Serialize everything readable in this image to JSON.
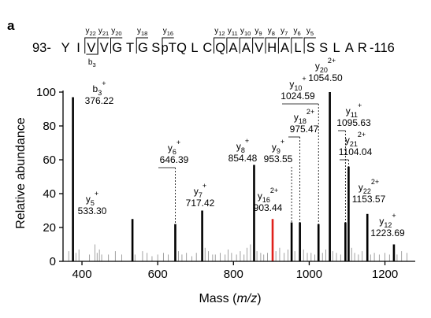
{
  "panel_label": "a",
  "peptide": {
    "prefix": "93-",
    "suffix": "-116",
    "residues": [
      "Y",
      "I",
      "V",
      "V",
      "G",
      "T",
      "G",
      "S",
      "pT",
      "Q",
      "L",
      "C",
      "Q",
      "A",
      "A",
      "V",
      "H",
      "A",
      "L",
      "S",
      "S",
      "L",
      "A",
      "R"
    ],
    "phospho_index": 8,
    "phospho_color": "#e0201b",
    "y_ions": [
      {
        "label": "y",
        "sub": "22",
        "after_index": 1
      },
      {
        "label": "y",
        "sub": "21",
        "after_index": 2
      },
      {
        "label": "y",
        "sub": "20",
        "after_index": 3
      },
      {
        "label": "y",
        "sub": "18",
        "after_index": 5
      },
      {
        "label": "y",
        "sub": "16",
        "after_index": 7
      },
      {
        "label": "y",
        "sub": "12",
        "after_index": 11
      },
      {
        "label": "y",
        "sub": "11",
        "after_index": 12
      },
      {
        "label": "y",
        "sub": "10",
        "after_index": 13
      },
      {
        "label": "y",
        "sub": "9",
        "after_index": 14
      },
      {
        "label": "y",
        "sub": "8",
        "after_index": 15
      },
      {
        "label": "y",
        "sub": "7",
        "after_index": 16
      },
      {
        "label": "y",
        "sub": "6",
        "after_index": 17
      },
      {
        "label": "y",
        "sub": "5",
        "after_index": 18
      }
    ],
    "b_ions": [
      {
        "label": "b",
        "sub": "3",
        "after_index": 2
      }
    ]
  },
  "chart_data": {
    "type": "bar",
    "xlabel": "Mass (m/z)",
    "ylabel": "Relative abundance",
    "xlim": [
      350,
      1280
    ],
    "ylim": [
      0,
      100
    ],
    "xticks": [
      400,
      600,
      800,
      1000,
      1200
    ],
    "yticks": [
      0,
      20,
      40,
      60,
      80,
      100
    ],
    "annotated_peaks": [
      {
        "ion": "b",
        "sub": "3",
        "charge": "+",
        "mz": 376.22,
        "mz_label": "376.22",
        "intensity": 97,
        "color": "#000000"
      },
      {
        "ion": "y",
        "sub": "5",
        "charge": "+",
        "mz": 533.3,
        "mz_label": "533.30",
        "intensity": 25,
        "color": "#000000"
      },
      {
        "ion": "y",
        "sub": "6",
        "charge": "+",
        "mz": 646.39,
        "mz_label": "646.39",
        "intensity": 22,
        "color": "#000000"
      },
      {
        "ion": "y",
        "sub": "7",
        "charge": "+",
        "mz": 717.42,
        "mz_label": "717.42",
        "intensity": 30,
        "color": "#000000"
      },
      {
        "ion": "y",
        "sub": "8",
        "charge": "+",
        "mz": 854.48,
        "mz_label": "854.48",
        "intensity": 57,
        "color": "#000000"
      },
      {
        "ion": "y",
        "sub": "16",
        "charge": "2+",
        "mz": 903.44,
        "mz_label": "903.44",
        "intensity": 25,
        "color": "#e0201b"
      },
      {
        "ion": "y",
        "sub": "9",
        "charge": "+",
        "mz": 953.55,
        "mz_label": "953.55",
        "intensity": 23,
        "color": "#000000"
      },
      {
        "ion": "y",
        "sub": "18",
        "charge": "2+",
        "mz": 975.47,
        "mz_label": "975.47",
        "intensity": 23,
        "color": "#000000"
      },
      {
        "ion": "y",
        "sub": "10",
        "charge": "+",
        "mz": 1024.59,
        "mz_label": "1024.59",
        "intensity": 22,
        "color": "#000000"
      },
      {
        "ion": "y",
        "sub": "20",
        "charge": "2+",
        "mz": 1054.5,
        "mz_label": "1054.50",
        "intensity": 100,
        "color": "#000000"
      },
      {
        "ion": "y",
        "sub": "11",
        "charge": "+",
        "mz": 1095.63,
        "mz_label": "1095.63",
        "intensity": 23,
        "color": "#000000"
      },
      {
        "ion": "y",
        "sub": "21",
        "charge": "2+",
        "mz": 1104.04,
        "mz_label": "1104.04",
        "intensity": 56,
        "color": "#000000"
      },
      {
        "ion": "y",
        "sub": "22",
        "charge": "2+",
        "mz": 1153.57,
        "mz_label": "1153.57",
        "intensity": 28,
        "color": "#000000"
      },
      {
        "ion": "y",
        "sub": "12",
        "charge": "+",
        "mz": 1223.69,
        "mz_label": "1223.69",
        "intensity": 10,
        "color": "#000000"
      }
    ],
    "minor_peaks": [
      {
        "mz": 365,
        "intensity": 6
      },
      {
        "mz": 384,
        "intensity": 5
      },
      {
        "mz": 392,
        "intensity": 7
      },
      {
        "mz": 420,
        "intensity": 4
      },
      {
        "mz": 434,
        "intensity": 10
      },
      {
        "mz": 440,
        "intensity": 5
      },
      {
        "mz": 446,
        "intensity": 7
      },
      {
        "mz": 452,
        "intensity": 4
      },
      {
        "mz": 470,
        "intensity": 4
      },
      {
        "mz": 488,
        "intensity": 6
      },
      {
        "mz": 505,
        "intensity": 4
      },
      {
        "mz": 540,
        "intensity": 4
      },
      {
        "mz": 560,
        "intensity": 6
      },
      {
        "mz": 572,
        "intensity": 5
      },
      {
        "mz": 585,
        "intensity": 3
      },
      {
        "mz": 600,
        "intensity": 4
      },
      {
        "mz": 615,
        "intensity": 5
      },
      {
        "mz": 628,
        "intensity": 4
      },
      {
        "mz": 655,
        "intensity": 6
      },
      {
        "mz": 664,
        "intensity": 4
      },
      {
        "mz": 676,
        "intensity": 5
      },
      {
        "mz": 690,
        "intensity": 3
      },
      {
        "mz": 702,
        "intensity": 5
      },
      {
        "mz": 725,
        "intensity": 8
      },
      {
        "mz": 734,
        "intensity": 6
      },
      {
        "mz": 745,
        "intensity": 4
      },
      {
        "mz": 752,
        "intensity": 4
      },
      {
        "mz": 765,
        "intensity": 5
      },
      {
        "mz": 778,
        "intensity": 4
      },
      {
        "mz": 786,
        "intensity": 7
      },
      {
        "mz": 795,
        "intensity": 5
      },
      {
        "mz": 808,
        "intensity": 4
      },
      {
        "mz": 818,
        "intensity": 6
      },
      {
        "mz": 828,
        "intensity": 4
      },
      {
        "mz": 836,
        "intensity": 8
      },
      {
        "mz": 845,
        "intensity": 10
      },
      {
        "mz": 862,
        "intensity": 6
      },
      {
        "mz": 872,
        "intensity": 5
      },
      {
        "mz": 880,
        "intensity": 4
      },
      {
        "mz": 890,
        "intensity": 5
      },
      {
        "mz": 912,
        "intensity": 6
      },
      {
        "mz": 922,
        "intensity": 8
      },
      {
        "mz": 934,
        "intensity": 5
      },
      {
        "mz": 944,
        "intensity": 7
      },
      {
        "mz": 962,
        "intensity": 6
      },
      {
        "mz": 985,
        "intensity": 7
      },
      {
        "mz": 995,
        "intensity": 5
      },
      {
        "mz": 1005,
        "intensity": 5
      },
      {
        "mz": 1015,
        "intensity": 4
      },
      {
        "mz": 1035,
        "intensity": 5
      },
      {
        "mz": 1044,
        "intensity": 7
      },
      {
        "mz": 1062,
        "intensity": 6
      },
      {
        "mz": 1072,
        "intensity": 5
      },
      {
        "mz": 1083,
        "intensity": 4
      },
      {
        "mz": 1112,
        "intensity": 8
      },
      {
        "mz": 1120,
        "intensity": 5
      },
      {
        "mz": 1130,
        "intensity": 4
      },
      {
        "mz": 1140,
        "intensity": 6
      },
      {
        "mz": 1162,
        "intensity": 4
      },
      {
        "mz": 1172,
        "intensity": 5
      },
      {
        "mz": 1185,
        "intensity": 4
      },
      {
        "mz": 1200,
        "intensity": 5
      },
      {
        "mz": 1212,
        "intensity": 4
      },
      {
        "mz": 1232,
        "intensity": 4
      },
      {
        "mz": 1244,
        "intensity": 6
      },
      {
        "mz": 1258,
        "intensity": 5
      }
    ]
  }
}
